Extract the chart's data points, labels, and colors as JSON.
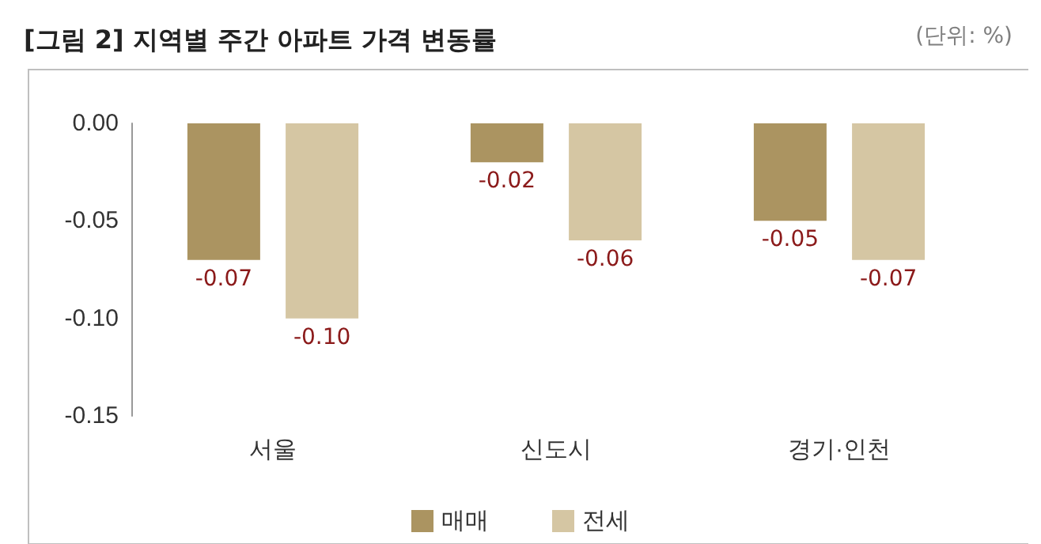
{
  "chart_data": {
    "type": "bar",
    "title": "[그림 2] 지역별 주간 아파트 가격 변동률",
    "annotations": [
      "(단위: %)"
    ],
    "categories": [
      "서울",
      "신도시",
      "경기·인천"
    ],
    "series": [
      {
        "name": "매매",
        "color": "#ab9461",
        "values": [
          -0.07,
          -0.02,
          -0.05
        ],
        "value_labels": [
          "-0.07",
          "-0.02",
          "-0.05"
        ]
      },
      {
        "name": "전세",
        "color": "#d5c6a3",
        "values": [
          -0.1,
          -0.06,
          -0.07
        ],
        "value_labels": [
          "-0.10",
          "-0.06",
          "-0.07"
        ]
      }
    ],
    "ylim": [
      -0.15,
      0
    ],
    "yticks": [
      {
        "value": 0,
        "label": "0.00"
      },
      {
        "value": -0.05,
        "label": "-0.05"
      },
      {
        "value": -0.1,
        "label": "-0.10"
      },
      {
        "value": -0.15,
        "label": "-0.15"
      }
    ],
    "grid": false,
    "legend": "bottom"
  }
}
